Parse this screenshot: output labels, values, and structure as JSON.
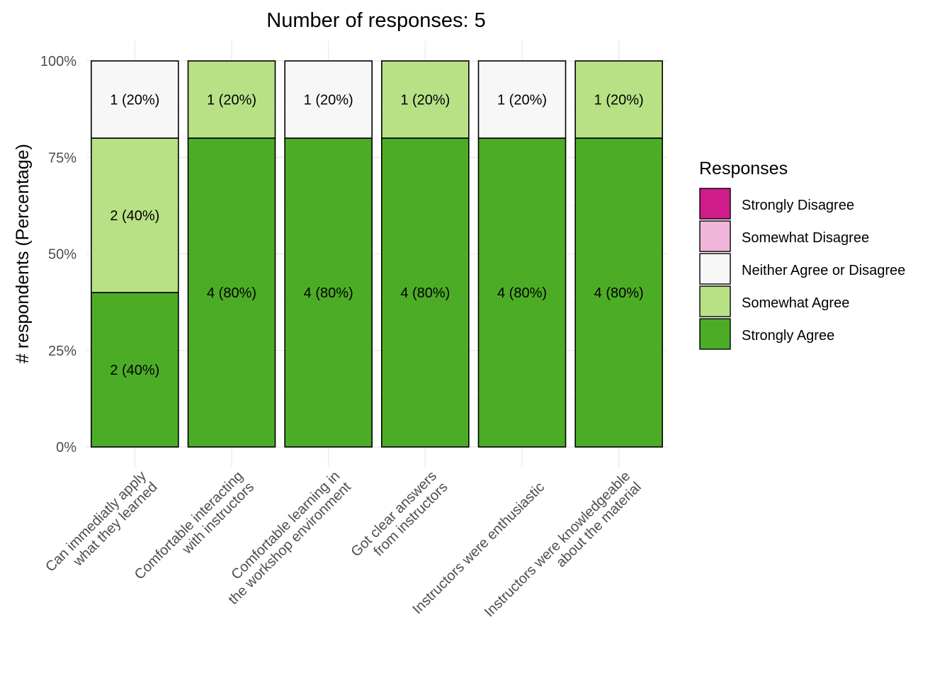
{
  "chart_data": {
    "type": "bar",
    "stacked": true,
    "title": "Number of responses: 5",
    "xlabel": "",
    "ylabel": "# respondents (Percentage)",
    "ylim": [
      0,
      100
    ],
    "yticks": [
      "0%",
      "25%",
      "50%",
      "75%",
      "100%"
    ],
    "ytick_values": [
      0,
      25,
      50,
      75,
      100
    ],
    "grid": true,
    "categories": [
      [
        "Can immediatly apply",
        "what they learned"
      ],
      [
        "Comfortable interacting",
        "with instructors"
      ],
      [
        "Comfortable learning in",
        "the workshop environment"
      ],
      [
        "Got clear answers",
        "from instructors"
      ],
      [
        "Instructors were enthusiastic"
      ],
      [
        "Instructors were knowledgeable",
        "about the material"
      ]
    ],
    "legend_title": "Responses",
    "legend_position": "right",
    "series": [
      {
        "name": "Strongly Disagree",
        "color": "#D01C8B",
        "counts": [
          0,
          0,
          0,
          0,
          0,
          0
        ],
        "values": [
          0,
          0,
          0,
          0,
          0,
          0
        ],
        "labels": [
          "",
          "",
          "",
          "",
          "",
          ""
        ]
      },
      {
        "name": "Somewhat Disagree",
        "color": "#F1B6DA",
        "counts": [
          0,
          0,
          0,
          0,
          0,
          0
        ],
        "values": [
          0,
          0,
          0,
          0,
          0,
          0
        ],
        "labels": [
          "",
          "",
          "",
          "",
          "",
          ""
        ]
      },
      {
        "name": "Neither Agree or Disagree",
        "color": "#F7F7F7",
        "counts": [
          1,
          0,
          1,
          0,
          1,
          0
        ],
        "values": [
          20,
          0,
          20,
          0,
          20,
          0
        ],
        "labels": [
          "1 (20%)",
          "",
          "1 (20%)",
          "",
          "1 (20%)",
          ""
        ]
      },
      {
        "name": "Somewhat Agree",
        "color": "#B8E186",
        "counts": [
          2,
          1,
          0,
          1,
          0,
          1
        ],
        "values": [
          40,
          20,
          0,
          20,
          0,
          20
        ],
        "labels": [
          "2 (40%)",
          "1 (20%)",
          "",
          "1 (20%)",
          "",
          "1 (20%)"
        ]
      },
      {
        "name": "Strongly Agree",
        "color": "#4DAC26",
        "counts": [
          2,
          4,
          4,
          4,
          4,
          4
        ],
        "values": [
          40,
          80,
          80,
          80,
          80,
          80
        ],
        "labels": [
          "2 (40%)",
          "4 (80%)",
          "4 (80%)",
          "4 (80%)",
          "4 (80%)",
          "4 (80%)"
        ]
      }
    ]
  }
}
